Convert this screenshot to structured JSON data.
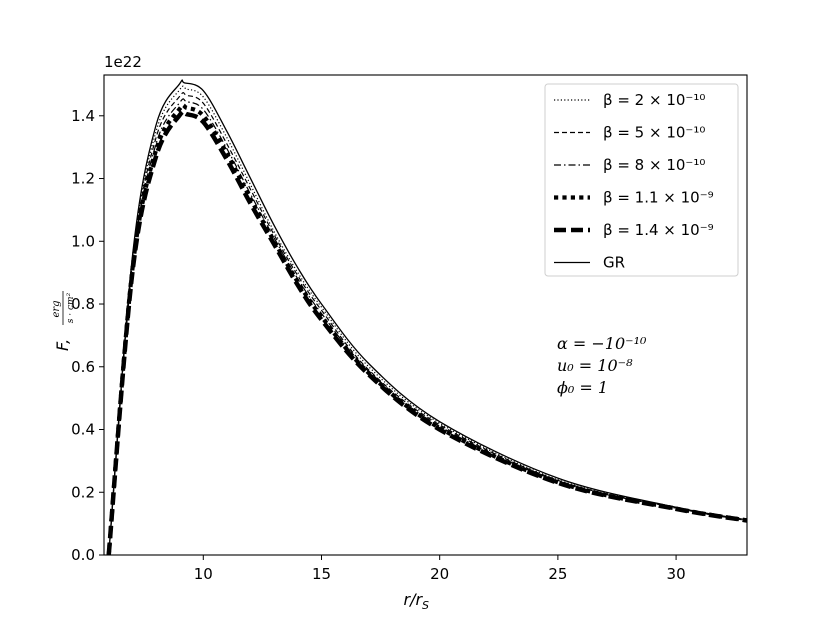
{
  "chart_data": {
    "type": "line",
    "xlabel": "r/r_S",
    "ylabel": "F, erg/(s·cm²)",
    "offset_text": "1e22",
    "xlim": [
      5.8,
      33
    ],
    "ylim": [
      0,
      1.53
    ],
    "xticks": [
      10,
      15,
      20,
      25,
      30
    ],
    "yticks": [
      0.0,
      0.2,
      0.4,
      0.6,
      0.8,
      1.0,
      1.2,
      1.4
    ],
    "ytick_labels": [
      "0.0",
      "0.2",
      "0.4",
      "0.6",
      "0.8",
      "1.0",
      "1.2",
      "1.4"
    ],
    "legend_position": "top-right",
    "annotations": [
      "α = −10⁻¹⁰",
      "u₀ = 10⁻⁸",
      "ϕ₀ = 1"
    ],
    "series": [
      {
        "name": "β = 2 × 10⁻¹⁰",
        "style": "dotted",
        "peak_x": 9.22,
        "peak_y": 1.485,
        "points": [
          [
            6.0,
            0.0
          ],
          [
            7.0,
            0.94
          ],
          [
            8.0,
            1.35
          ],
          [
            9.0,
            1.483
          ],
          [
            9.3,
            1.485
          ],
          [
            10,
            1.46
          ],
          [
            11,
            1.33
          ],
          [
            12,
            1.18
          ],
          [
            13,
            1.03
          ],
          [
            14,
            0.9
          ],
          [
            15,
            0.79
          ],
          [
            17,
            0.6
          ],
          [
            20,
            0.42
          ],
          [
            25,
            0.24
          ],
          [
            30,
            0.15
          ],
          [
            33,
            0.11
          ]
        ]
      },
      {
        "name": "β = 5 × 10⁻¹⁰",
        "style": "dashed",
        "peak_x": 9.24,
        "peak_y": 1.465,
        "points": [
          [
            6.0,
            0.0
          ],
          [
            7.0,
            0.93
          ],
          [
            8.0,
            1.33
          ],
          [
            9.0,
            1.462
          ],
          [
            9.3,
            1.465
          ],
          [
            10,
            1.44
          ],
          [
            11,
            1.31
          ],
          [
            12,
            1.165
          ],
          [
            13,
            1.02
          ],
          [
            14,
            0.89
          ],
          [
            15,
            0.78
          ],
          [
            17,
            0.59
          ],
          [
            20,
            0.415
          ],
          [
            25,
            0.238
          ],
          [
            30,
            0.15
          ],
          [
            33,
            0.11
          ]
        ]
      },
      {
        "name": "β = 8 × 10⁻¹⁰",
        "style": "dashdot",
        "peak_x": 9.26,
        "peak_y": 1.445,
        "points": [
          [
            6.0,
            0.0
          ],
          [
            7.0,
            0.92
          ],
          [
            8.0,
            1.31
          ],
          [
            9.0,
            1.442
          ],
          [
            9.3,
            1.445
          ],
          [
            10,
            1.42
          ],
          [
            11,
            1.295
          ],
          [
            12,
            1.15
          ],
          [
            13,
            1.01
          ],
          [
            14,
            0.88
          ],
          [
            15,
            0.77
          ],
          [
            17,
            0.585
          ],
          [
            20,
            0.41
          ],
          [
            25,
            0.235
          ],
          [
            30,
            0.149
          ],
          [
            33,
            0.11
          ]
        ]
      },
      {
        "name": "β = 1.1 × 10⁻⁹",
        "style": "thick-dotted",
        "peak_x": 9.28,
        "peak_y": 1.425,
        "points": [
          [
            6.0,
            0.0
          ],
          [
            7.0,
            0.91
          ],
          [
            8.0,
            1.29
          ],
          [
            9.0,
            1.422
          ],
          [
            9.3,
            1.425
          ],
          [
            10,
            1.4
          ],
          [
            11,
            1.28
          ],
          [
            12,
            1.135
          ],
          [
            13,
            1.0
          ],
          [
            14,
            0.87
          ],
          [
            15,
            0.76
          ],
          [
            17,
            0.58
          ],
          [
            20,
            0.405
          ],
          [
            25,
            0.232
          ],
          [
            30,
            0.148
          ],
          [
            33,
            0.11
          ]
        ]
      },
      {
        "name": "β = 1.4 × 10⁻⁹",
        "style": "thick-dashed",
        "peak_x": 9.3,
        "peak_y": 1.405,
        "points": [
          [
            6.0,
            0.0
          ],
          [
            7.0,
            0.9
          ],
          [
            8.0,
            1.27
          ],
          [
            9.0,
            1.402
          ],
          [
            9.3,
            1.405
          ],
          [
            10,
            1.38
          ],
          [
            11,
            1.26
          ],
          [
            12,
            1.12
          ],
          [
            13,
            0.99
          ],
          [
            14,
            0.86
          ],
          [
            15,
            0.75
          ],
          [
            17,
            0.575
          ],
          [
            20,
            0.4
          ],
          [
            25,
            0.23
          ],
          [
            30,
            0.147
          ],
          [
            33,
            0.11
          ]
        ]
      },
      {
        "name": "GR",
        "style": "solid",
        "peak_x": 9.2,
        "peak_y": 1.505,
        "points": [
          [
            6.0,
            0.0
          ],
          [
            7.0,
            0.95
          ],
          [
            8.0,
            1.37
          ],
          [
            9.0,
            1.502
          ],
          [
            9.2,
            1.505
          ],
          [
            10,
            1.48
          ],
          [
            11,
            1.35
          ],
          [
            12,
            1.2
          ],
          [
            13,
            1.05
          ],
          [
            14,
            0.915
          ],
          [
            15,
            0.8
          ],
          [
            17,
            0.61
          ],
          [
            20,
            0.425
          ],
          [
            25,
            0.245
          ],
          [
            30,
            0.152
          ],
          [
            33,
            0.112
          ]
        ]
      }
    ]
  }
}
